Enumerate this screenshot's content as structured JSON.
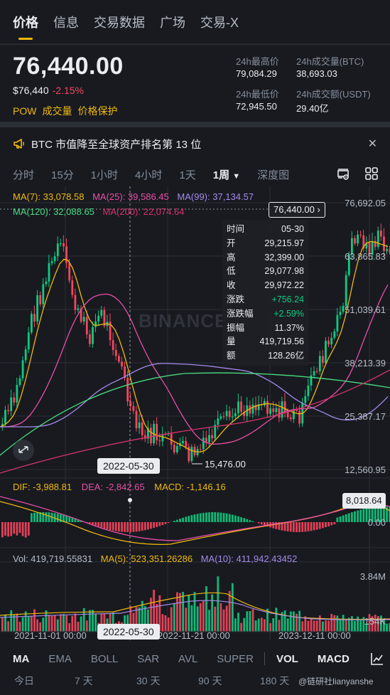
{
  "tabs": [
    {
      "label": "价格",
      "active": true
    },
    {
      "label": "信息",
      "active": false
    },
    {
      "label": "交易数据",
      "active": false
    },
    {
      "label": "广场",
      "active": false
    },
    {
      "label": "交易-X",
      "active": false
    }
  ],
  "price": {
    "last": "76,440.00",
    "usd": "$76,440",
    "change": "-2.15%",
    "tags": [
      "POW",
      "成交量",
      "价格保护"
    ]
  },
  "stats": {
    "high_label": "24h最高价",
    "high": "79,084.29",
    "vol_btc_label": "24h成交量(BTC)",
    "vol_btc": "38,693.03",
    "low_label": "24h最低价",
    "low": "72,945.50",
    "vol_usdt_label": "24h成交额(USDT)",
    "vol_usdt": "29.40亿"
  },
  "announcement": {
    "text": "BTC 市值降至全球资产排名第 13 位",
    "icon": "megaphone-icon"
  },
  "intervals": {
    "items": [
      "分时",
      "15分",
      "1小时",
      "4小时",
      "1天",
      "1周",
      "深度图"
    ],
    "active": "1周",
    "tools": [
      "chart-settings-icon",
      "grid-layout-icon"
    ]
  },
  "ma_legend": {
    "ma7": "MA(7): 33,078.58",
    "ma25": "MA(25): 39,586.45",
    "ma99": "MA(99): 37,134.57",
    "ma120": "MA(120): 32,088.65",
    "ma200": "MA(200): 22,074.64"
  },
  "price_axis": [
    "76,692.05",
    "63,865.83",
    "51,039.61",
    "38,213.39",
    "25,387.17",
    "12,560.95"
  ],
  "current_price_tag": "76,440.00",
  "tooltip": {
    "rows": [
      {
        "k": "时间",
        "v": "05-30"
      },
      {
        "k": "开",
        "v": "29,215.97"
      },
      {
        "k": "高",
        "v": "32,399.00"
      },
      {
        "k": "低",
        "v": "29,077.98"
      },
      {
        "k": "收",
        "v": "29,972.22"
      },
      {
        "k": "涨跌",
        "v": "+756.24"
      },
      {
        "k": "涨跌幅",
        "v": "+2.59%"
      },
      {
        "k": "振幅",
        "v": "11.37%"
      },
      {
        "k": "量",
        "v": "419,719.56"
      },
      {
        "k": "额",
        "v": "128.26亿"
      }
    ]
  },
  "crosshair_date": "2022-05-30",
  "low_marker": "15,476.00",
  "watermark": "BINANCE",
  "macd": {
    "dif": "DIF: -3,988.81",
    "dea": "DEA: -2,842.65",
    "macd": "MACD: -1,146.16",
    "tag": "8,018.64",
    "zero": "0.00"
  },
  "volume": {
    "vol": "Vol: 419,719.55831",
    "ma5": "MA(5): 523,351.26286",
    "ma10": "MA(10): 411,942.43452",
    "top": "3.84M",
    "bottom": "154K"
  },
  "x_axis": [
    "2021-11-01 00:00",
    "2022-11-21 00:00",
    "2023-12-11 00:00"
  ],
  "indicators": {
    "items": [
      "MA",
      "EMA",
      "BOLL",
      "SAR",
      "AVL",
      "SUPER",
      "VOL",
      "MACD"
    ],
    "active": [
      "MA",
      "VOL",
      "MACD"
    ]
  },
  "periods": [
    "今日",
    "7 天",
    "30 天",
    "90 天",
    "180 天"
  ],
  "credit": "@链研社lianyanshe",
  "colors": {
    "up": "#0ecb81",
    "down": "#f6465d",
    "accent": "#f0b90b",
    "ma7": "#f0b90b",
    "ma25": "#e84fa7",
    "ma99": "#a68aeb",
    "ma120": "#4ade80",
    "ma200": "#d6336c"
  }
}
